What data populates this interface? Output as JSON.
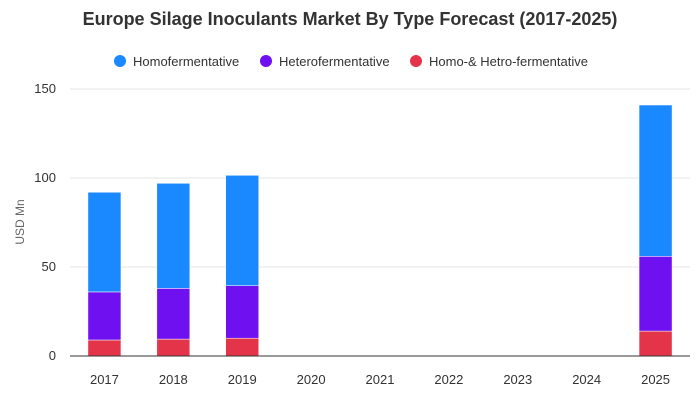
{
  "chart_data": {
    "type": "bar",
    "stacked": true,
    "title": "Europe Silage Inoculants Market By Type Forecast (2017-2025)",
    "ylabel": "USD Mn",
    "ylim": [
      0,
      150
    ],
    "yticks": [
      0,
      50,
      100,
      150
    ],
    "grid": true,
    "legend_position": "top",
    "categories": [
      "2017",
      "2018",
      "2019",
      "2020",
      "2021",
      "2022",
      "2023",
      "2024",
      "2025"
    ],
    "series": [
      {
        "name": "Homofermentative",
        "color": "#1a88ff",
        "values": [
          56,
          59,
          62,
          null,
          null,
          null,
          null,
          null,
          85
        ]
      },
      {
        "name": "Heterofermentative",
        "color": "#6f10f0",
        "values": [
          27,
          28.5,
          29.5,
          null,
          null,
          null,
          null,
          null,
          42
        ]
      },
      {
        "name": "Homo-& Hetro-fermentative",
        "color": "#e3344a",
        "values": [
          9,
          9.5,
          10,
          null,
          null,
          null,
          null,
          null,
          14
        ]
      }
    ]
  }
}
